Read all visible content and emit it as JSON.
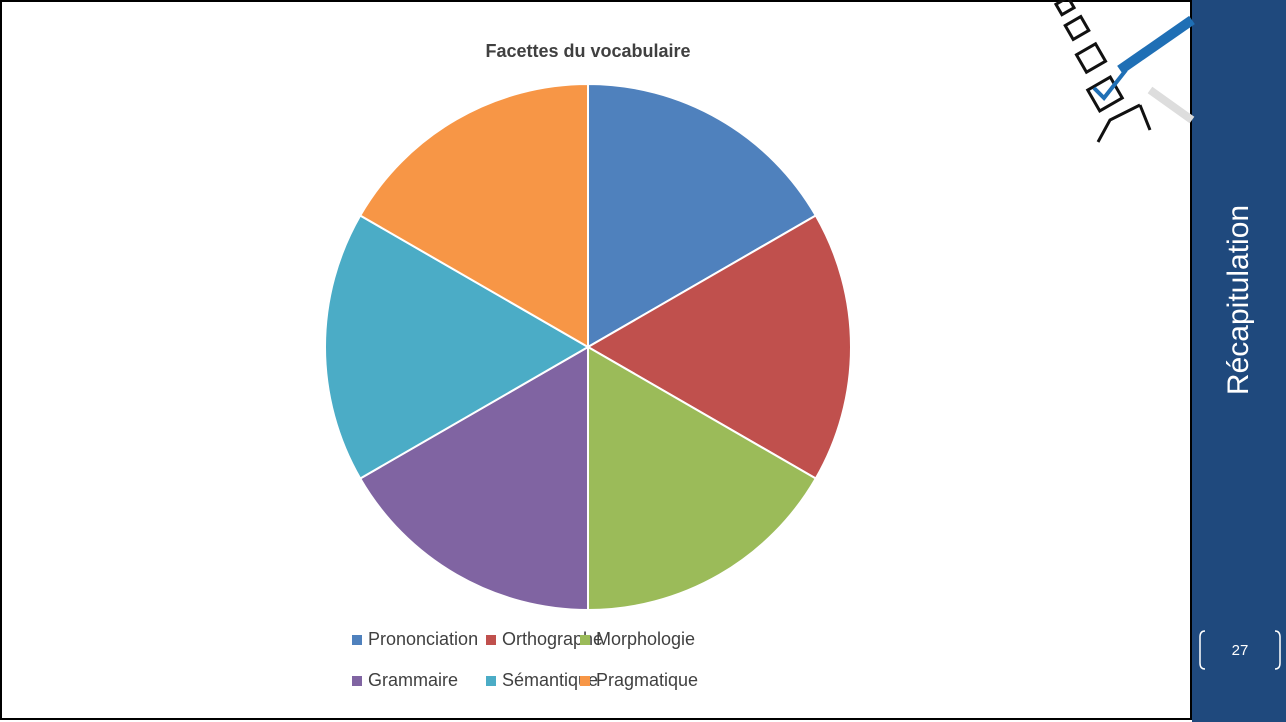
{
  "chart_data": {
    "type": "pie",
    "title": "Facettes du vocabulaire",
    "categories": [
      "Prononciation",
      "Orthographe",
      "Morphologie",
      "Grammaire",
      "Sémantique",
      "Pragmatique"
    ],
    "values": [
      1,
      1,
      1,
      1,
      1,
      1
    ],
    "colors": [
      "#4f81bd",
      "#c0504d",
      "#9bbb59",
      "#8064a2",
      "#4bacc6",
      "#f79646"
    ],
    "legend": "bottom"
  },
  "sidebar": {
    "title": "Récapitulation",
    "page_number": "27"
  }
}
